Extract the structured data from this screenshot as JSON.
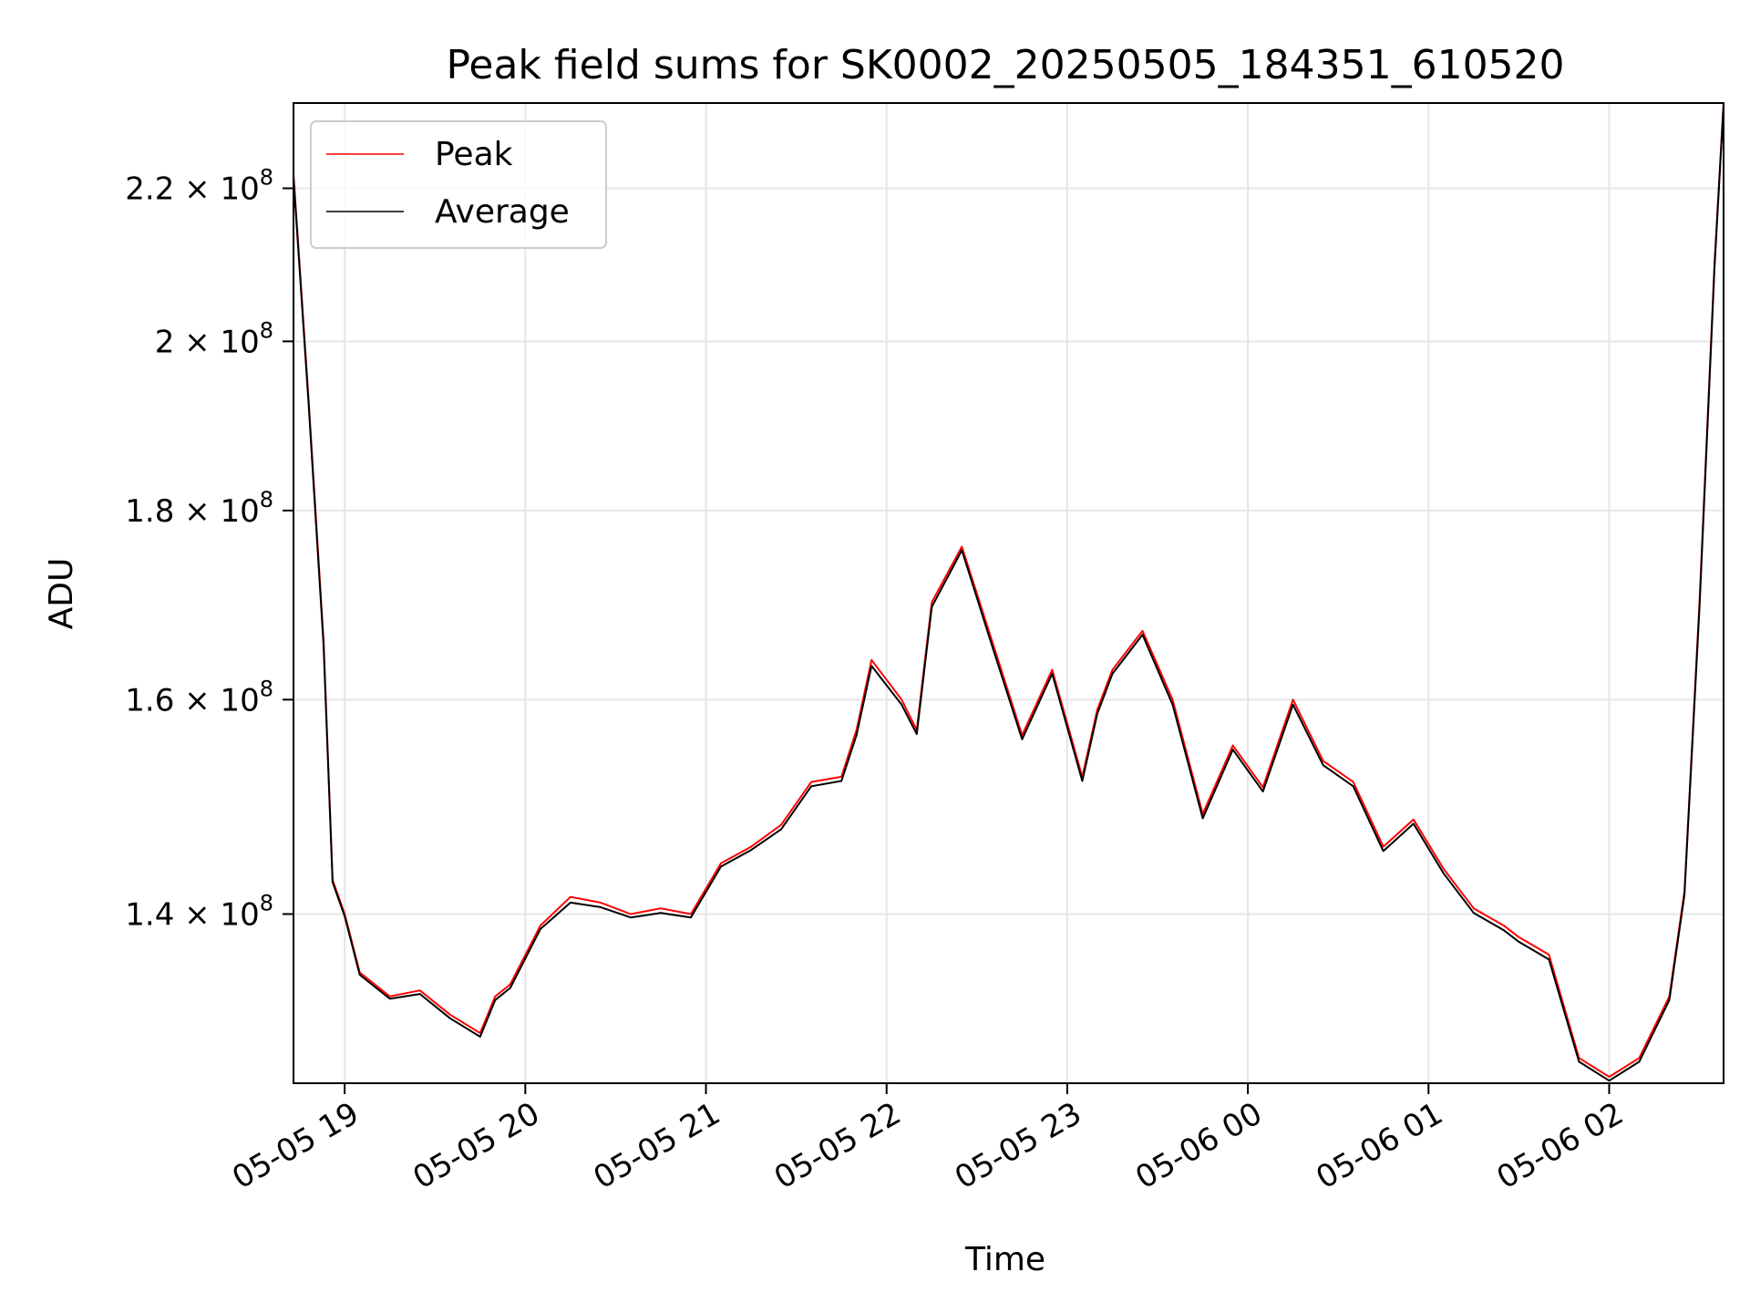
{
  "chart_data": {
    "type": "line",
    "title": "Peak field sums for SK0002_20250505_184351_610520",
    "xlabel": "Time",
    "ylabel": "ADU",
    "x_start": "05-05 18:43",
    "x_end": "05-06 02:38",
    "xlim": [
      "05-05 18:43",
      "05-06 02:38"
    ],
    "ylim": [
      126000000,
      232000000
    ],
    "y_scale": "log",
    "grid": true,
    "legend_position": "top-left",
    "x_ticks": [
      {
        "label": "05-05 19",
        "time": "05-05 19:00"
      },
      {
        "label": "05-05 20",
        "time": "05-05 20:00"
      },
      {
        "label": "05-05 21",
        "time": "05-05 21:00"
      },
      {
        "label": "05-05 22",
        "time": "05-05 22:00"
      },
      {
        "label": "05-05 23",
        "time": "05-05 23:00"
      },
      {
        "label": "05-06 00",
        "time": "05-06 00:00"
      },
      {
        "label": "05-06 01",
        "time": "05-06 01:00"
      },
      {
        "label": "05-06 02",
        "time": "05-06 02:00"
      }
    ],
    "y_ticks": [
      {
        "mantissa": "1.4",
        "exponent": "8",
        "value": 140000000
      },
      {
        "mantissa": "1.6",
        "exponent": "8",
        "value": 160000000
      },
      {
        "mantissa": "1.8",
        "exponent": "8",
        "value": 180000000
      },
      {
        "mantissa": "2",
        "exponent": "8",
        "value": 200000000
      },
      {
        "mantissa": "2.2",
        "exponent": "8",
        "value": 220000000
      }
    ],
    "series": [
      {
        "name": "Peak",
        "color": "#ff0000",
        "x": [
          "05-05 18:43",
          "05-05 18:48",
          "05-05 18:53",
          "05-05 18:56",
          "05-05 19:00",
          "05-05 19:05",
          "05-05 19:15",
          "05-05 19:25",
          "05-05 19:35",
          "05-05 19:45",
          "05-05 19:50",
          "05-05 19:55",
          "05-05 20:05",
          "05-05 20:15",
          "05-05 20:25",
          "05-05 20:35",
          "05-05 20:45",
          "05-05 20:55",
          "05-05 21:05",
          "05-05 21:15",
          "05-05 21:25",
          "05-05 21:35",
          "05-05 21:45",
          "05-05 21:50",
          "05-05 21:55",
          "05-05 22:05",
          "05-05 22:10",
          "05-05 22:15",
          "05-05 22:25",
          "05-05 22:35",
          "05-05 22:45",
          "05-05 22:55",
          "05-05 23:05",
          "05-05 23:10",
          "05-05 23:15",
          "05-05 23:25",
          "05-05 23:35",
          "05-05 23:45",
          "05-05 23:55",
          "05-06 00:05",
          "05-06 00:15",
          "05-06 00:25",
          "05-06 00:35",
          "05-06 00:45",
          "05-06 00:55",
          "05-06 01:05",
          "05-06 01:15",
          "05-06 01:25",
          "05-06 01:30",
          "05-06 01:40",
          "05-06 01:50",
          "05-06 02:00",
          "05-06 02:10",
          "05-06 02:20",
          "05-06 02:25",
          "05-06 02:30",
          "05-06 02:35",
          "05-06 02:38"
        ],
        "values": [
          222000000,
          193000000,
          166000000,
          143000000,
          140000000,
          135000000,
          133000000,
          133500000,
          131500000,
          130000000,
          133000000,
          134000000,
          139000000,
          141500000,
          141000000,
          140000000,
          140500000,
          140000000,
          144500000,
          146000000,
          148000000,
          152000000,
          152500000,
          157000000,
          164000000,
          160000000,
          157000000,
          170000000,
          176000000,
          166000000,
          156500000,
          163000000,
          152500000,
          159000000,
          163000000,
          167000000,
          160000000,
          149000000,
          155500000,
          151500000,
          160000000,
          154000000,
          152000000,
          146000000,
          148500000,
          144000000,
          140500000,
          139000000,
          138000000,
          136500000,
          128000000,
          126500000,
          128000000,
          133000000,
          142000000,
          170000000,
          210000000,
          232000000
        ]
      },
      {
        "name": "Average",
        "color": "#000000",
        "x": [
          "05-05 18:43",
          "05-05 18:48",
          "05-05 18:53",
          "05-05 18:56",
          "05-05 19:00",
          "05-05 19:05",
          "05-05 19:15",
          "05-05 19:25",
          "05-05 19:35",
          "05-05 19:45",
          "05-05 19:50",
          "05-05 19:55",
          "05-05 20:05",
          "05-05 20:15",
          "05-05 20:25",
          "05-05 20:35",
          "05-05 20:45",
          "05-05 20:55",
          "05-05 21:05",
          "05-05 21:15",
          "05-05 21:25",
          "05-05 21:35",
          "05-05 21:45",
          "05-05 21:50",
          "05-05 21:55",
          "05-05 22:05",
          "05-05 22:10",
          "05-05 22:15",
          "05-05 22:25",
          "05-05 22:35",
          "05-05 22:45",
          "05-05 22:55",
          "05-05 23:05",
          "05-05 23:10",
          "05-05 23:15",
          "05-05 23:25",
          "05-05 23:35",
          "05-05 23:45",
          "05-05 23:55",
          "05-06 00:05",
          "05-06 00:15",
          "05-06 00:25",
          "05-06 00:35",
          "05-06 00:45",
          "05-06 00:55",
          "05-06 01:05",
          "05-06 01:15",
          "05-06 01:25",
          "05-06 01:30",
          "05-06 01:40",
          "05-06 01:50",
          "05-06 02:00",
          "05-06 02:10",
          "05-06 02:20",
          "05-06 02:25",
          "05-06 02:30",
          "05-06 02:35",
          "05-06 02:38"
        ],
        "values": [
          221500000,
          192500000,
          165500000,
          142800000,
          139800000,
          134800000,
          132800000,
          133200000,
          131200000,
          129700000,
          132700000,
          133700000,
          138700000,
          141000000,
          140600000,
          139700000,
          140100000,
          139700000,
          144200000,
          145700000,
          147600000,
          151600000,
          152100000,
          156500000,
          163400000,
          159500000,
          156600000,
          169500000,
          175600000,
          165500000,
          156100000,
          162600000,
          152100000,
          158600000,
          162600000,
          166600000,
          159500000,
          148600000,
          155100000,
          151100000,
          159500000,
          153600000,
          151600000,
          145600000,
          148100000,
          143600000,
          140100000,
          138600000,
          137600000,
          136100000,
          127700000,
          126200000,
          127700000,
          132700000,
          141700000,
          169500000,
          209500000,
          231800000
        ]
      }
    ]
  }
}
